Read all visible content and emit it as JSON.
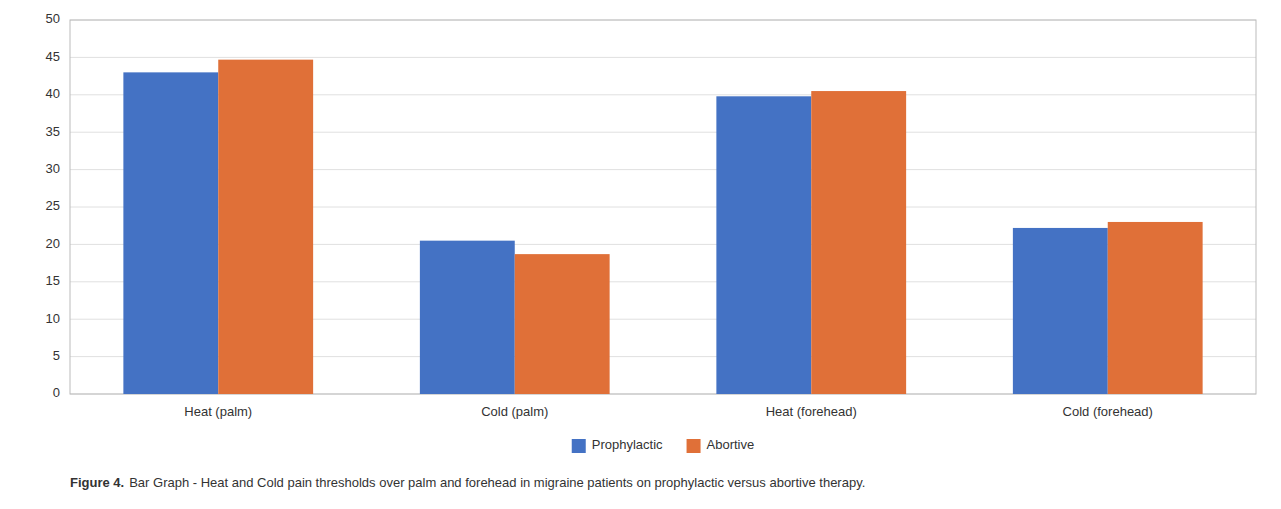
{
  "chart_data": {
    "type": "bar",
    "title": "Figure 4.",
    "subtitle": "Bar Graph - Heat and Cold pain thresholds over palm and forehead in migraine patients on prophylactic versus abortive therapy.",
    "categories": [
      "Heat (palm)",
      "Cold (palm)",
      "Heat (forehead)",
      "Cold (forehead)"
    ],
    "series": [
      {
        "name": "Prophylactic",
        "color": "#4472C4",
        "values": [
          43.0,
          20.5,
          39.8,
          22.2
        ]
      },
      {
        "name": "Abortive",
        "color": "#E07038",
        "values": [
          44.7,
          18.7,
          40.5,
          23.0
        ]
      }
    ],
    "ylim": [
      0,
      50
    ],
    "yticks": [
      0,
      5,
      10,
      15,
      20,
      25,
      30,
      35,
      40,
      45,
      50
    ],
    "grid": true,
    "legend": "bottom"
  }
}
